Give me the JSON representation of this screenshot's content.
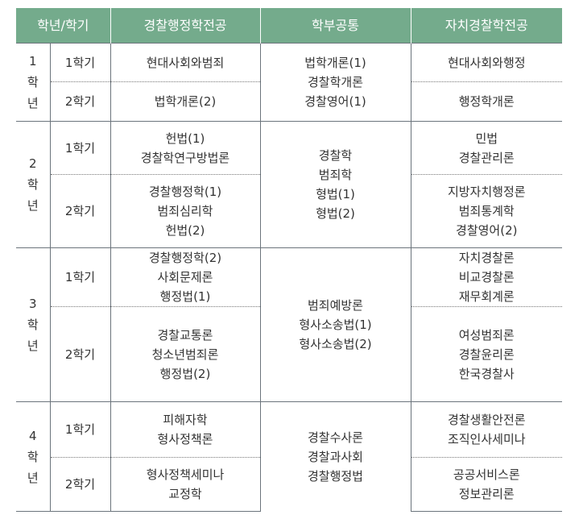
{
  "header": [
    "학년/학기",
    "경찰행정학전공",
    "학부공통",
    "자치경찰학전공"
  ],
  "years": [
    {
      "year": [
        "1",
        "학",
        "년"
      ],
      "common": [
        "법학개론(1)",
        "경찰학개론",
        "경찰영어(1)"
      ],
      "semesters": [
        {
          "label": "1학기",
          "major1": [
            "현대사회와범죄"
          ],
          "major2": [
            "현대사회와행정"
          ]
        },
        {
          "label": "2학기",
          "major1": [
            "법학개론(2)"
          ],
          "major2": [
            "행정학개론"
          ]
        }
      ]
    },
    {
      "year": [
        "2",
        "학",
        "년"
      ],
      "common": [
        "경찰학",
        "범죄학",
        "형법(1)",
        "형법(2)"
      ],
      "semesters": [
        {
          "label": "1학기",
          "major1": [
            "헌법(1)",
            "경찰학연구방법론"
          ],
          "major2": [
            "민법",
            "경찰관리론"
          ]
        },
        {
          "label": "2학기",
          "major1": [
            "경찰행정학(1)",
            "범죄심리학",
            "헌법(2)"
          ],
          "major2": [
            "지방자치행정론",
            "범죄통계학",
            "경찰영어(2)"
          ]
        }
      ]
    },
    {
      "year": [
        "3",
        "학",
        "년"
      ],
      "common": [
        "범죄예방론",
        "형사소송법(1)",
        "형사소송법(2)"
      ],
      "semesters": [
        {
          "label": "1학기",
          "major1": [
            "경찰행정학(2)",
            "사회문제론",
            "행정법(1)"
          ],
          "major2": [
            "자치경찰론",
            "비교경찰론",
            "재무회계론"
          ]
        },
        {
          "label": "2학기",
          "major1": [
            "경찰교통론",
            "청소년범죄론",
            "행정법(2)"
          ],
          "major2": [
            "여성범죄론",
            "경찰윤리론",
            "한국경찰사"
          ]
        }
      ]
    },
    {
      "year": [
        "4",
        "학",
        "년"
      ],
      "common": [
        "경찰수사론",
        "경찰과사회",
        "경찰행정법"
      ],
      "semesters": [
        {
          "label": "1학기",
          "major1": [
            "피해자학",
            "형사정책론"
          ],
          "major2": [
            "경찰생활안전론",
            "조직인사세미나"
          ]
        },
        {
          "label": "2학기",
          "major1": [
            "형사정책세미나",
            "교정학"
          ],
          "major2": [
            "공공서비스론",
            "정보관리론"
          ]
        }
      ]
    }
  ]
}
